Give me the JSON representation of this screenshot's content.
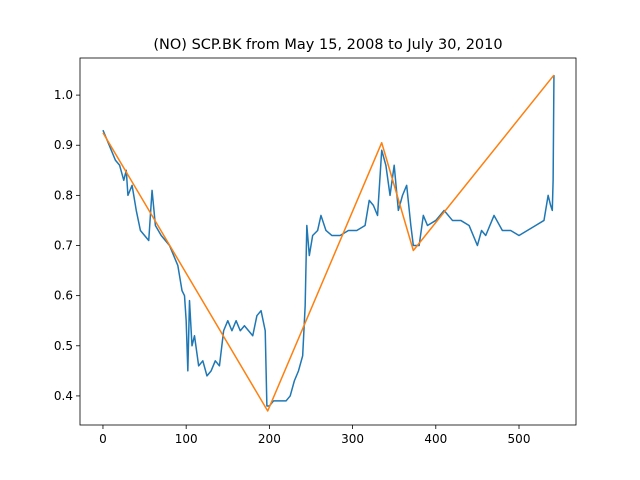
{
  "chart_data": {
    "type": "line",
    "title": "(NO) SCP.BK from May 15, 2008 to July 30, 2010",
    "xlim": [
      -27.6,
      568.5
    ],
    "xticks": [
      0,
      100,
      200,
      300,
      400,
      500
    ],
    "ylim": [
      0.342,
      1.074
    ],
    "yticks": [
      0.4,
      0.5,
      0.6,
      0.7,
      0.8,
      0.9,
      {
        "value": 1,
        "label": "1.0"
      }
    ],
    "series": [
      {
        "color": "#1f77b4",
        "x": [
          0,
          5,
          10,
          15,
          20,
          25,
          28,
          30,
          35,
          40,
          45,
          50,
          55,
          59,
          63,
          70,
          80,
          90,
          95,
          98,
          100,
          102,
          104,
          107,
          110,
          115,
          120,
          125,
          130,
          135,
          140,
          145,
          150,
          155,
          160,
          165,
          170,
          175,
          180,
          185,
          190,
          195,
          197,
          200,
          205,
          210,
          215,
          220,
          225,
          230,
          235,
          240,
          243,
          245,
          248,
          252,
          258,
          262,
          268,
          275,
          285,
          295,
          305,
          315,
          320,
          325,
          330,
          335,
          340,
          345,
          350,
          355,
          360,
          365,
          370,
          373,
          380,
          385,
          390,
          400,
          410,
          420,
          430,
          440,
          450,
          455,
          460,
          470,
          480,
          490,
          500,
          510,
          520,
          530,
          535,
          538,
          540,
          541,
          542
        ],
        "values": [
          0.93,
          0.91,
          0.89,
          0.87,
          0.86,
          0.83,
          0.85,
          0.8,
          0.82,
          0.77,
          0.73,
          0.72,
          0.71,
          0.81,
          0.74,
          0.72,
          0.7,
          0.66,
          0.61,
          0.6,
          0.55,
          0.45,
          0.59,
          0.5,
          0.52,
          0.46,
          0.47,
          0.44,
          0.45,
          0.47,
          0.46,
          0.53,
          0.55,
          0.53,
          0.55,
          0.53,
          0.54,
          0.53,
          0.52,
          0.56,
          0.57,
          0.53,
          0.38,
          0.38,
          0.39,
          0.39,
          0.39,
          0.39,
          0.4,
          0.43,
          0.45,
          0.48,
          0.58,
          0.74,
          0.68,
          0.72,
          0.73,
          0.76,
          0.73,
          0.72,
          0.72,
          0.73,
          0.73,
          0.74,
          0.79,
          0.78,
          0.76,
          0.89,
          0.86,
          0.8,
          0.86,
          0.77,
          0.8,
          0.82,
          0.74,
          0.7,
          0.7,
          0.76,
          0.74,
          0.75,
          0.77,
          0.75,
          0.75,
          0.74,
          0.7,
          0.73,
          0.72,
          0.76,
          0.73,
          0.73,
          0.72,
          0.73,
          0.74,
          0.75,
          0.8,
          0.78,
          0.77,
          0.83,
          1.04
        ]
      },
      {
        "color": "#ff7f0e",
        "x": [
          0,
          198,
          335,
          373,
          542
        ],
        "values": [
          0.925,
          0.37,
          0.905,
          0.69,
          1.04
        ]
      }
    ]
  }
}
